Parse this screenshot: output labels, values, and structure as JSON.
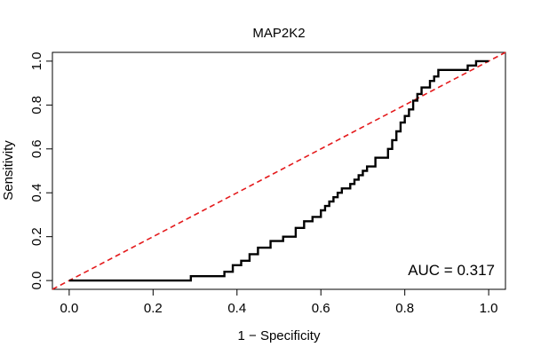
{
  "chart_data": {
    "type": "line",
    "title": "MAP2K2",
    "xlabel": "1 − Specificity",
    "ylabel": "Sensitivity",
    "xlim": [
      -0.04,
      1.04
    ],
    "ylim": [
      -0.04,
      1.04
    ],
    "x_ticks": [
      0.0,
      0.2,
      0.4,
      0.6,
      0.8,
      1.0
    ],
    "x_tick_labels": [
      "0.0",
      "0.2",
      "0.4",
      "0.6",
      "0.8",
      "1.0"
    ],
    "y_ticks": [
      0.0,
      0.2,
      0.4,
      0.6,
      0.8,
      1.0
    ],
    "y_tick_labels": [
      "0.0",
      "0.2",
      "0.4",
      "0.6",
      "0.8",
      "1.0"
    ],
    "grid": false,
    "annotation": "AUC = 0.317",
    "reference_line": {
      "x": [
        0,
        1
      ],
      "y": [
        0,
        1
      ],
      "style": "dashed",
      "color": "#e41a1c"
    },
    "series": [
      {
        "color": "#000000",
        "x": [
          0.0,
          0.29,
          0.29,
          0.37,
          0.37,
          0.39,
          0.39,
          0.41,
          0.41,
          0.43,
          0.43,
          0.45,
          0.45,
          0.48,
          0.48,
          0.51,
          0.51,
          0.54,
          0.54,
          0.56,
          0.56,
          0.58,
          0.58,
          0.6,
          0.6,
          0.61,
          0.61,
          0.62,
          0.62,
          0.63,
          0.63,
          0.64,
          0.64,
          0.65,
          0.65,
          0.67,
          0.67,
          0.68,
          0.68,
          0.69,
          0.69,
          0.7,
          0.7,
          0.71,
          0.71,
          0.73,
          0.73,
          0.76,
          0.76,
          0.77,
          0.77,
          0.78,
          0.78,
          0.79,
          0.79,
          0.8,
          0.8,
          0.81,
          0.81,
          0.82,
          0.82,
          0.83,
          0.83,
          0.84,
          0.84,
          0.86,
          0.86,
          0.87,
          0.87,
          0.88,
          0.88,
          0.9,
          0.9,
          0.95,
          0.95,
          0.97,
          0.97,
          1.0
        ],
        "y": [
          0.0,
          0.0,
          0.02,
          0.02,
          0.04,
          0.04,
          0.07,
          0.07,
          0.09,
          0.09,
          0.12,
          0.12,
          0.15,
          0.15,
          0.18,
          0.18,
          0.2,
          0.2,
          0.24,
          0.24,
          0.27,
          0.27,
          0.29,
          0.29,
          0.32,
          0.32,
          0.34,
          0.34,
          0.36,
          0.36,
          0.38,
          0.38,
          0.4,
          0.4,
          0.42,
          0.42,
          0.44,
          0.44,
          0.46,
          0.46,
          0.48,
          0.48,
          0.5,
          0.5,
          0.52,
          0.52,
          0.56,
          0.56,
          0.6,
          0.6,
          0.64,
          0.64,
          0.68,
          0.68,
          0.72,
          0.72,
          0.75,
          0.75,
          0.78,
          0.78,
          0.82,
          0.82,
          0.85,
          0.85,
          0.88,
          0.88,
          0.91,
          0.91,
          0.93,
          0.93,
          0.96,
          0.96,
          0.96,
          0.96,
          0.98,
          0.98,
          1.0,
          1.0
        ]
      }
    ]
  }
}
